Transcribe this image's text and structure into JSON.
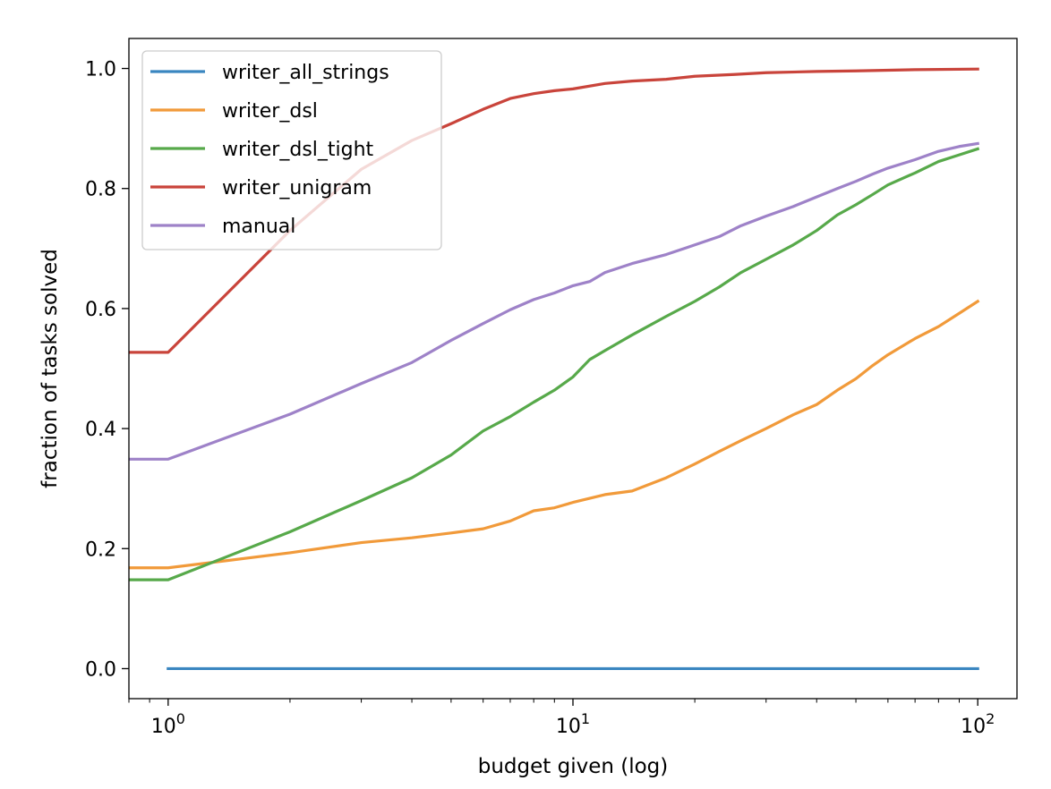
{
  "chart_data": {
    "type": "line",
    "xscale": "log",
    "xlabel": "budget given (log)",
    "ylabel": "fraction of tasks solved",
    "xlim": [
      0.8,
      125
    ],
    "ylim": [
      -0.05,
      1.05
    ],
    "xticks": [
      1,
      10,
      100
    ],
    "xtick_labels": [
      {
        "base": "10",
        "exp": "0"
      },
      {
        "base": "10",
        "exp": "1"
      },
      {
        "base": "10",
        "exp": "2"
      }
    ],
    "yticks": [
      0.0,
      0.2,
      0.4,
      0.6,
      0.8,
      1.0
    ],
    "ytick_labels": [
      "0.0",
      "0.2",
      "0.4",
      "0.6",
      "0.8",
      "1.0"
    ],
    "legend_position": "top-left",
    "grid": false,
    "series": [
      {
        "name": "writer_all_strings",
        "color": "#3a86c0",
        "points": [
          [
            1,
            0.0
          ],
          [
            100,
            0.0
          ]
        ]
      },
      {
        "name": "writer_dsl",
        "color": "#f19a3a",
        "points": [
          [
            0.8,
            0.168
          ],
          [
            1,
            0.168
          ],
          [
            2,
            0.193
          ],
          [
            3,
            0.21
          ],
          [
            4,
            0.218
          ],
          [
            5,
            0.226
          ],
          [
            6,
            0.233
          ],
          [
            7,
            0.246
          ],
          [
            8,
            0.263
          ],
          [
            9,
            0.268
          ],
          [
            10,
            0.277
          ],
          [
            12,
            0.29
          ],
          [
            14,
            0.296
          ],
          [
            17,
            0.318
          ],
          [
            20,
            0.341
          ],
          [
            23,
            0.362
          ],
          [
            26,
            0.38
          ],
          [
            30,
            0.4
          ],
          [
            35,
            0.423
          ],
          [
            40,
            0.44
          ],
          [
            45,
            0.464
          ],
          [
            50,
            0.483
          ],
          [
            55,
            0.505
          ],
          [
            60,
            0.523
          ],
          [
            70,
            0.55
          ],
          [
            80,
            0.57
          ],
          [
            90,
            0.592
          ],
          [
            100,
            0.612
          ]
        ]
      },
      {
        "name": "writer_dsl_tight",
        "color": "#57a94a",
        "points": [
          [
            0.8,
            0.148
          ],
          [
            1,
            0.148
          ],
          [
            2,
            0.228
          ],
          [
            3,
            0.28
          ],
          [
            4,
            0.318
          ],
          [
            5,
            0.356
          ],
          [
            6,
            0.396
          ],
          [
            7,
            0.42
          ],
          [
            8,
            0.444
          ],
          [
            9,
            0.464
          ],
          [
            10,
            0.486
          ],
          [
            11,
            0.515
          ],
          [
            12,
            0.53
          ],
          [
            14,
            0.556
          ],
          [
            17,
            0.587
          ],
          [
            20,
            0.612
          ],
          [
            23,
            0.636
          ],
          [
            26,
            0.66
          ],
          [
            30,
            0.682
          ],
          [
            35,
            0.706
          ],
          [
            40,
            0.73
          ],
          [
            45,
            0.756
          ],
          [
            50,
            0.773
          ],
          [
            55,
            0.79
          ],
          [
            60,
            0.806
          ],
          [
            70,
            0.826
          ],
          [
            80,
            0.845
          ],
          [
            90,
            0.856
          ],
          [
            100,
            0.866
          ]
        ]
      },
      {
        "name": "writer_unigram",
        "color": "#c9443b",
        "points": [
          [
            0.8,
            0.527
          ],
          [
            1,
            0.527
          ],
          [
            2,
            0.73
          ],
          [
            3,
            0.832
          ],
          [
            4,
            0.88
          ],
          [
            5,
            0.908
          ],
          [
            6,
            0.932
          ],
          [
            7,
            0.95
          ],
          [
            8,
            0.958
          ],
          [
            9,
            0.963
          ],
          [
            10,
            0.966
          ],
          [
            12,
            0.975
          ],
          [
            14,
            0.979
          ],
          [
            17,
            0.982
          ],
          [
            20,
            0.987
          ],
          [
            25,
            0.99
          ],
          [
            30,
            0.993
          ],
          [
            40,
            0.995
          ],
          [
            50,
            0.996
          ],
          [
            70,
            0.998
          ],
          [
            100,
            0.999
          ]
        ]
      },
      {
        "name": "manual",
        "color": "#9e82c8",
        "points": [
          [
            0.8,
            0.349
          ],
          [
            1,
            0.349
          ],
          [
            2,
            0.424
          ],
          [
            3,
            0.475
          ],
          [
            4,
            0.51
          ],
          [
            5,
            0.547
          ],
          [
            6,
            0.575
          ],
          [
            7,
            0.598
          ],
          [
            8,
            0.615
          ],
          [
            9,
            0.626
          ],
          [
            10,
            0.638
          ],
          [
            11,
            0.645
          ],
          [
            12,
            0.66
          ],
          [
            14,
            0.675
          ],
          [
            17,
            0.69
          ],
          [
            20,
            0.706
          ],
          [
            23,
            0.72
          ],
          [
            26,
            0.738
          ],
          [
            30,
            0.754
          ],
          [
            35,
            0.77
          ],
          [
            40,
            0.786
          ],
          [
            45,
            0.8
          ],
          [
            50,
            0.812
          ],
          [
            55,
            0.824
          ],
          [
            60,
            0.834
          ],
          [
            70,
            0.848
          ],
          [
            80,
            0.862
          ],
          [
            90,
            0.87
          ],
          [
            100,
            0.875
          ]
        ]
      }
    ]
  }
}
